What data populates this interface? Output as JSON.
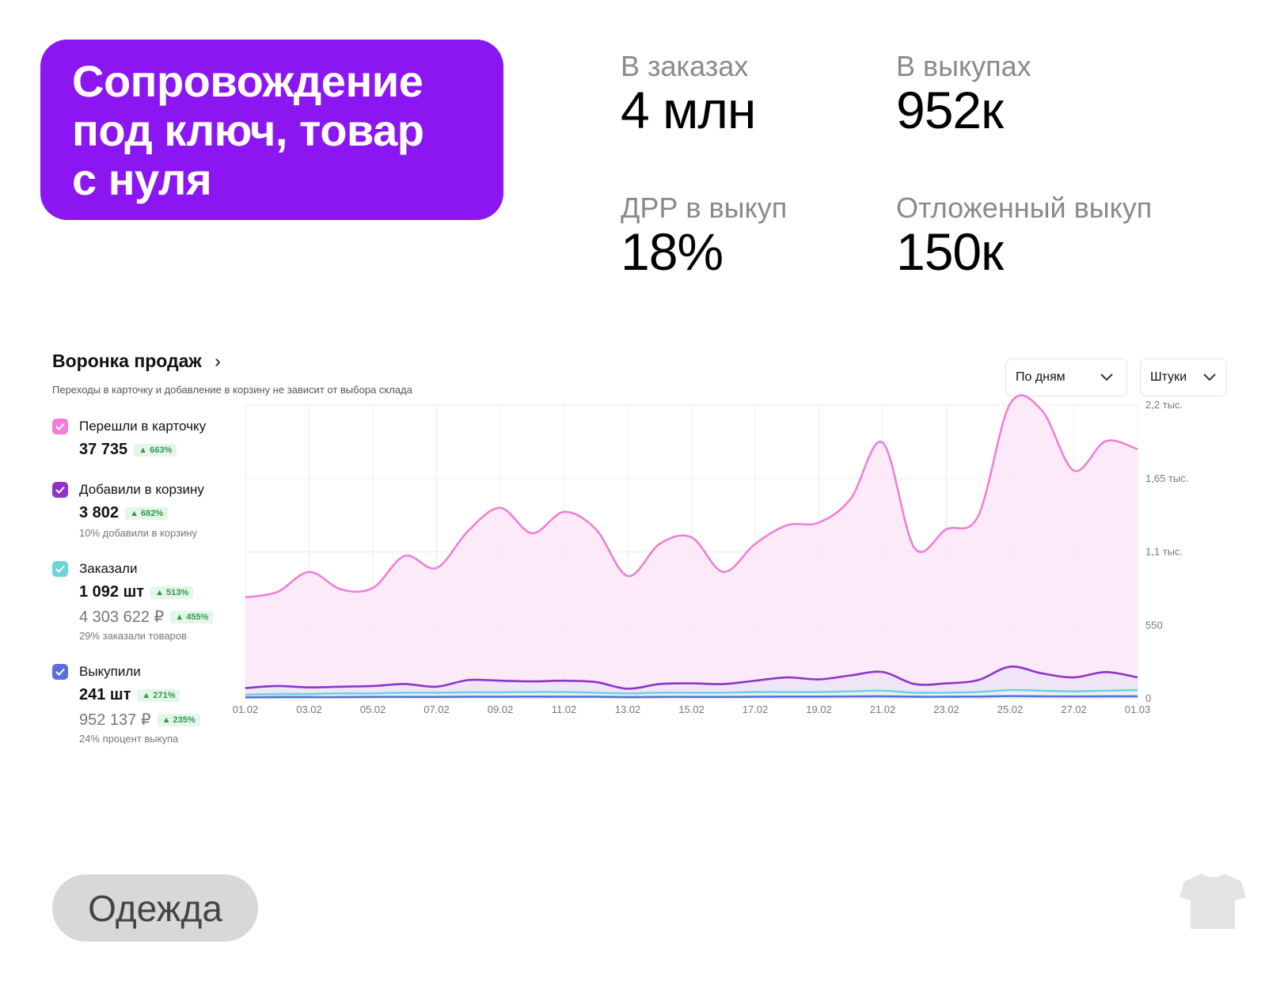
{
  "hero": {
    "title": "Сопровождение\nпод ключ, товар\nс нуля"
  },
  "stats": [
    {
      "label": "В заказах",
      "value": "4 млн"
    },
    {
      "label": "В выкупах",
      "value": "952к"
    },
    {
      "label": "ДРР в выкуп",
      "value": "18%"
    },
    {
      "label": "Отложенный выкуп",
      "value": "150к"
    }
  ],
  "funnel": {
    "title": "Воронка продаж",
    "subtitle": "Переходы в карточку и добавление в корзину не зависит от выбора склада",
    "period_dropdown": "По дням",
    "unit_dropdown": "Штуки",
    "legend": [
      {
        "name": "Перешли в карточку",
        "color": "#ef7fd8",
        "value": "37 735",
        "change": "663%"
      },
      {
        "name": "Добавили в корзину",
        "color": "#8e34c9",
        "value": "3 802",
        "change": "682%",
        "note": "10% добавили в корзину"
      },
      {
        "name": "Заказали",
        "color": "#6fd3dc",
        "value": "1 092 шт",
        "change": "513%",
        "value2": "4 303 622 ₽",
        "change2": "455%",
        "note": "29% заказали товаров"
      },
      {
        "name": "Выкупили",
        "color": "#5a6fd9",
        "value": "241 шт",
        "change": "271%",
        "value2": "952 137 ₽",
        "change2": "235%",
        "note": "24% процент выкупа"
      }
    ]
  },
  "chart_data": {
    "type": "area",
    "x": [
      "01.02",
      "02.02",
      "03.02",
      "04.02",
      "05.02",
      "06.02",
      "07.02",
      "08.02",
      "09.02",
      "10.02",
      "11.02",
      "12.02",
      "13.02",
      "14.02",
      "15.02",
      "16.02",
      "17.02",
      "18.02",
      "19.02",
      "20.02",
      "21.02",
      "22.02",
      "23.02",
      "24.02",
      "25.02",
      "26.02",
      "27.02",
      "28.02",
      "01.03"
    ],
    "x_tick_labels": [
      "01.02",
      "03.02",
      "05.02",
      "07.02",
      "09.02",
      "11.02",
      "13.02",
      "15.02",
      "17.02",
      "19.02",
      "21.02",
      "23.02",
      "25.02",
      "27.02",
      "01.03"
    ],
    "y_tick_labels": [
      "0",
      "550",
      "1,1 тыс.",
      "1,65 тыс.",
      "2,2 тыс."
    ],
    "ylim": [
      0,
      2200
    ],
    "grid": true,
    "series": [
      {
        "name": "Перешли в карточку",
        "color": "#ef7fd8",
        "values": [
          760,
          800,
          950,
          820,
          830,
          1070,
          980,
          1260,
          1430,
          1240,
          1400,
          1270,
          920,
          1160,
          1210,
          950,
          1160,
          1300,
          1320,
          1500,
          1920,
          1130,
          1270,
          1370,
          2210,
          2160,
          1710,
          1930,
          1870
        ]
      },
      {
        "name": "Добавили в корзину",
        "color": "#8e34c9",
        "values": [
          80,
          95,
          85,
          90,
          95,
          110,
          90,
          140,
          135,
          130,
          135,
          125,
          75,
          110,
          115,
          110,
          135,
          160,
          145,
          175,
          200,
          110,
          115,
          140,
          240,
          190,
          160,
          200,
          160
        ]
      },
      {
        "name": "Заказали",
        "color": "#6fd3dc",
        "values": [
          30,
          35,
          35,
          40,
          40,
          45,
          45,
          48,
          48,
          50,
          50,
          45,
          40,
          45,
          45,
          45,
          50,
          50,
          50,
          55,
          60,
          45,
          45,
          50,
          65,
          60,
          55,
          60,
          65
        ]
      },
      {
        "name": "Выкупили",
        "color": "#5a6fd9",
        "values": [
          10,
          12,
          12,
          12,
          14,
          14,
          14,
          15,
          15,
          16,
          15,
          15,
          12,
          14,
          14,
          14,
          15,
          16,
          16,
          17,
          18,
          15,
          15,
          16,
          20,
          18,
          17,
          18,
          18
        ]
      }
    ]
  },
  "category_tag": "Одежда",
  "corner_icon": "tshirt-icon"
}
